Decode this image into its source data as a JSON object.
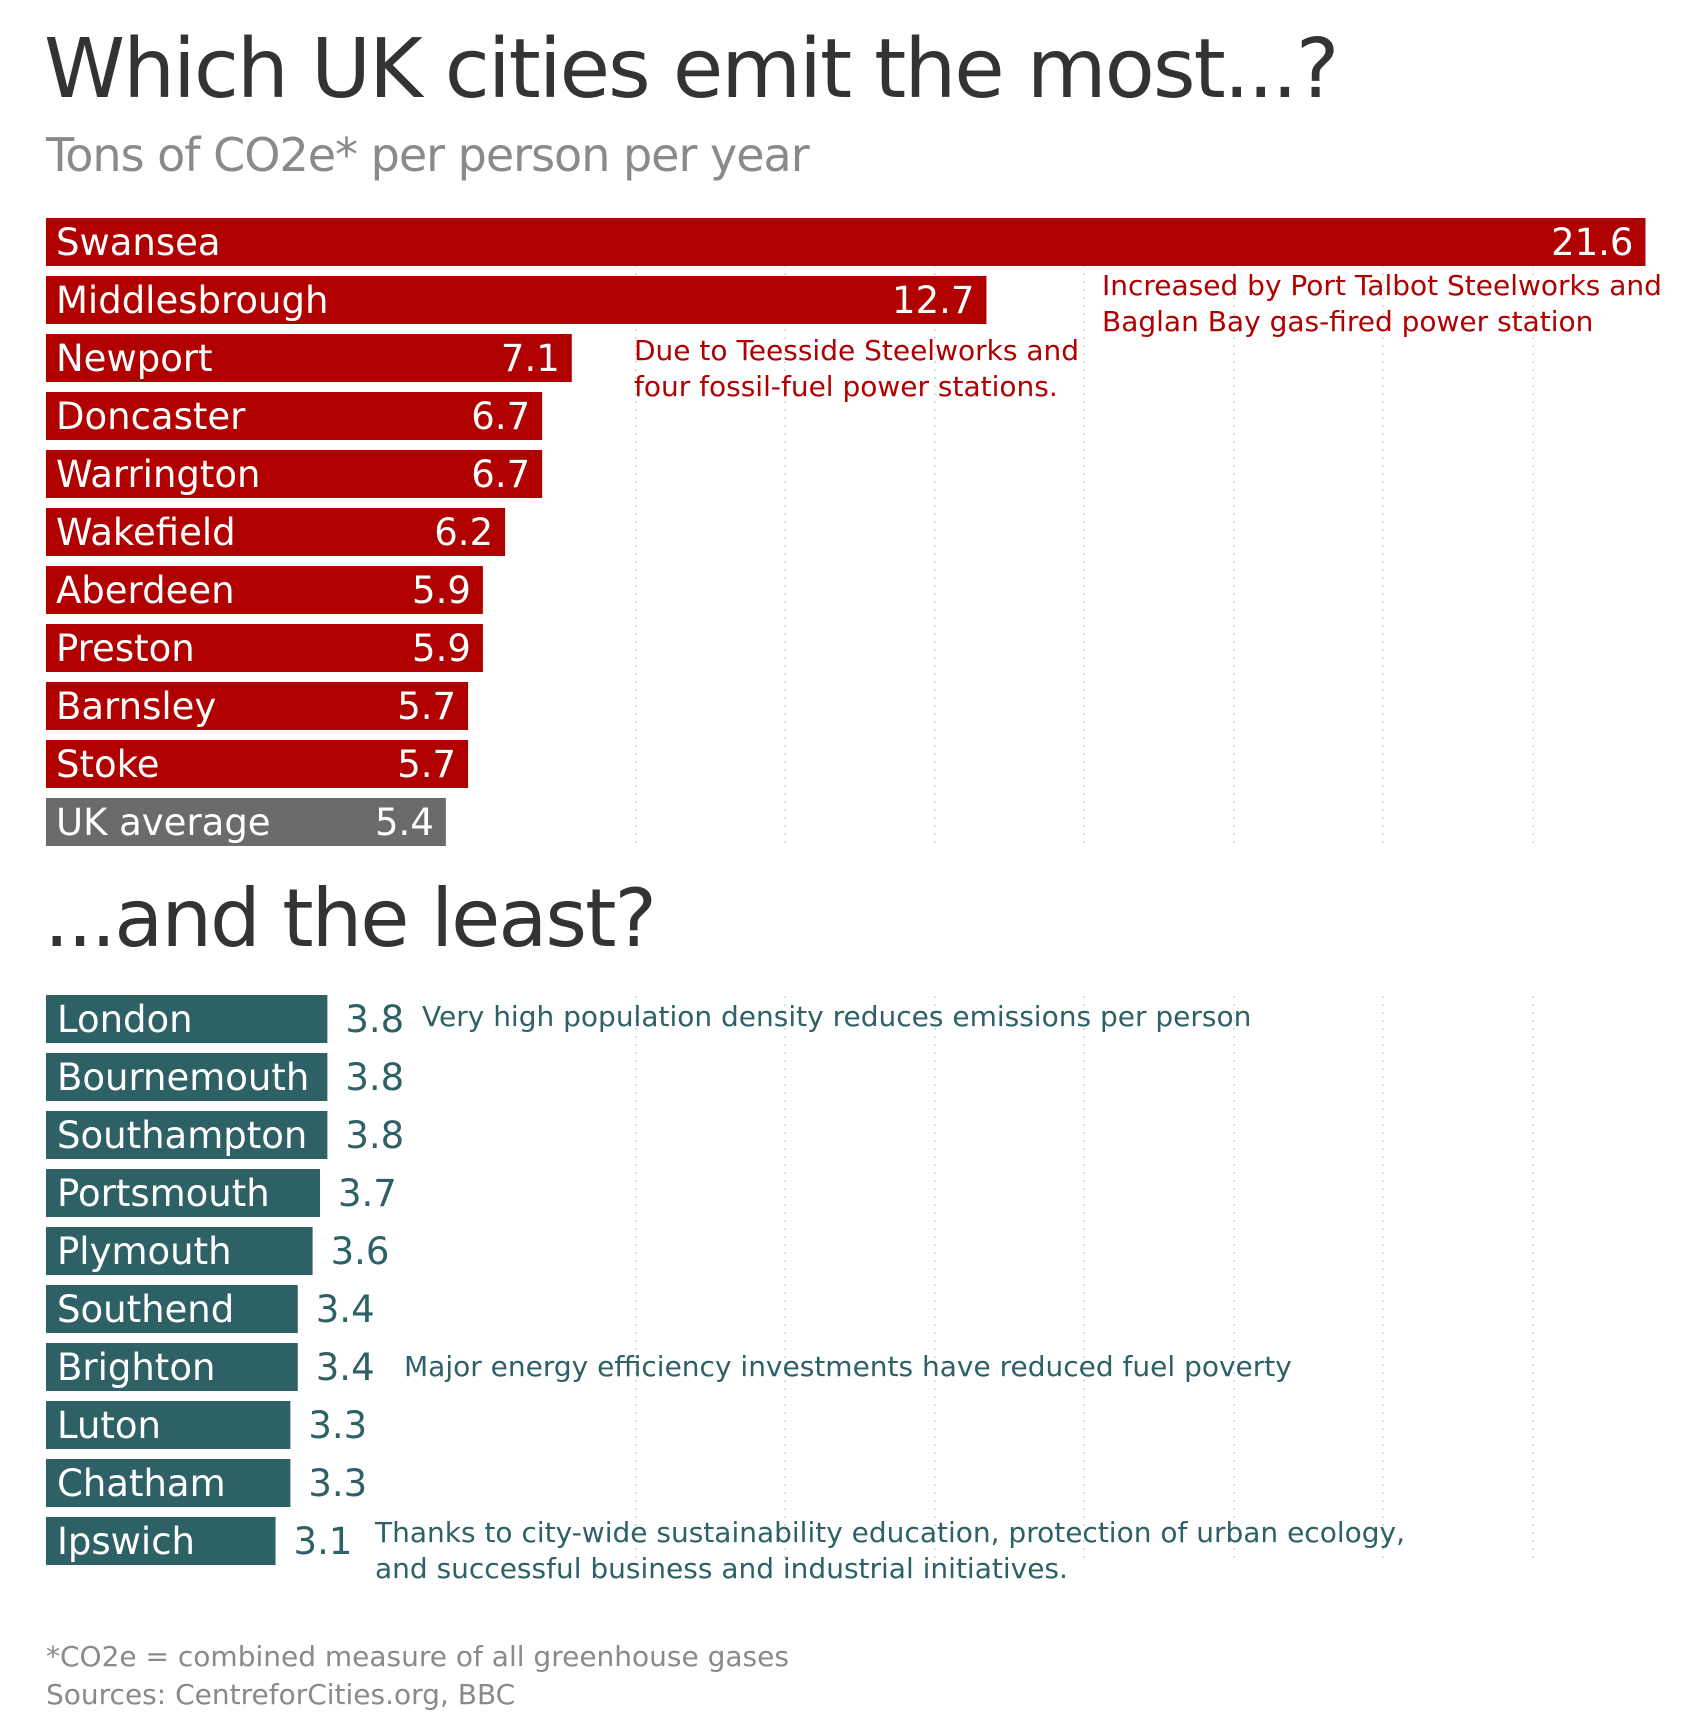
{
  "header": {
    "title": "Which UK cities emit the most...?",
    "subtitle": "Tons of CO2e* per person per year"
  },
  "section2": {
    "title": "...and the least?"
  },
  "colors": {
    "high": "#b00000",
    "average": "#6b6b6b",
    "low": "#2d6165",
    "grid": "#d0d0d0"
  },
  "chart_data": [
    {
      "type": "bar",
      "orientation": "horizontal",
      "categories": [
        "Swansea",
        "Middlesbrough",
        "Newport",
        "Doncaster",
        "Warrington",
        "Wakefield",
        "Aberdeen",
        "Preston",
        "Barnsley",
        "Stoke",
        "UK average"
      ],
      "values": [
        21.6,
        12.7,
        7.1,
        6.7,
        6.7,
        6.2,
        5.9,
        5.9,
        5.7,
        5.7,
        5.4
      ],
      "value_labels": [
        "21.6",
        "12.7",
        "7.1",
        "6.7",
        "6.7",
        "6.2",
        "5.9",
        "5.9",
        "5.7",
        "5.7",
        "5.4"
      ],
      "xlim": [
        0,
        21.6
      ],
      "grid": "vertical dotted",
      "annotations": [
        {
          "target": "Swansea",
          "text_lines": [
            "Increased by Port Talbot Steelworks and",
            "Baglan Bay gas-fired power station"
          ]
        },
        {
          "target": "Middlesbrough",
          "text_lines": [
            "Due to Teesside Steelworks and",
            "four fossil-fuel power stations."
          ]
        }
      ]
    },
    {
      "type": "bar",
      "orientation": "horizontal",
      "categories": [
        "London",
        "Bournemouth",
        "Southampton",
        "Portsmouth",
        "Plymouth",
        "Southend",
        "Brighton",
        "Luton",
        "Chatham",
        "Ipswich"
      ],
      "values": [
        3.8,
        3.8,
        3.8,
        3.7,
        3.6,
        3.4,
        3.4,
        3.3,
        3.3,
        3.1
      ],
      "value_labels": [
        "3.8",
        "3.8",
        "3.8",
        "3.7",
        "3.6",
        "3.4",
        "3.4",
        "3.3",
        "3.3",
        "3.1"
      ],
      "xlim": [
        0,
        21.6
      ],
      "grid": "vertical dotted",
      "annotations": [
        {
          "target": "London",
          "text_lines": [
            "Very high population density reduces emissions per person"
          ]
        },
        {
          "target": "Brighton",
          "text_lines": [
            "Major energy efficiency investments have reduced fuel poverty"
          ]
        },
        {
          "target": "Ipswich",
          "text_lines": [
            "Thanks to city-wide sustainability education, protection of urban ecology,",
            "and successful business and industrial initiatives."
          ]
        }
      ]
    }
  ],
  "footer": {
    "note": "*CO2e = combined measure of all greenhouse gases",
    "sources": "Sources: CentreforCities.org, BBC"
  }
}
